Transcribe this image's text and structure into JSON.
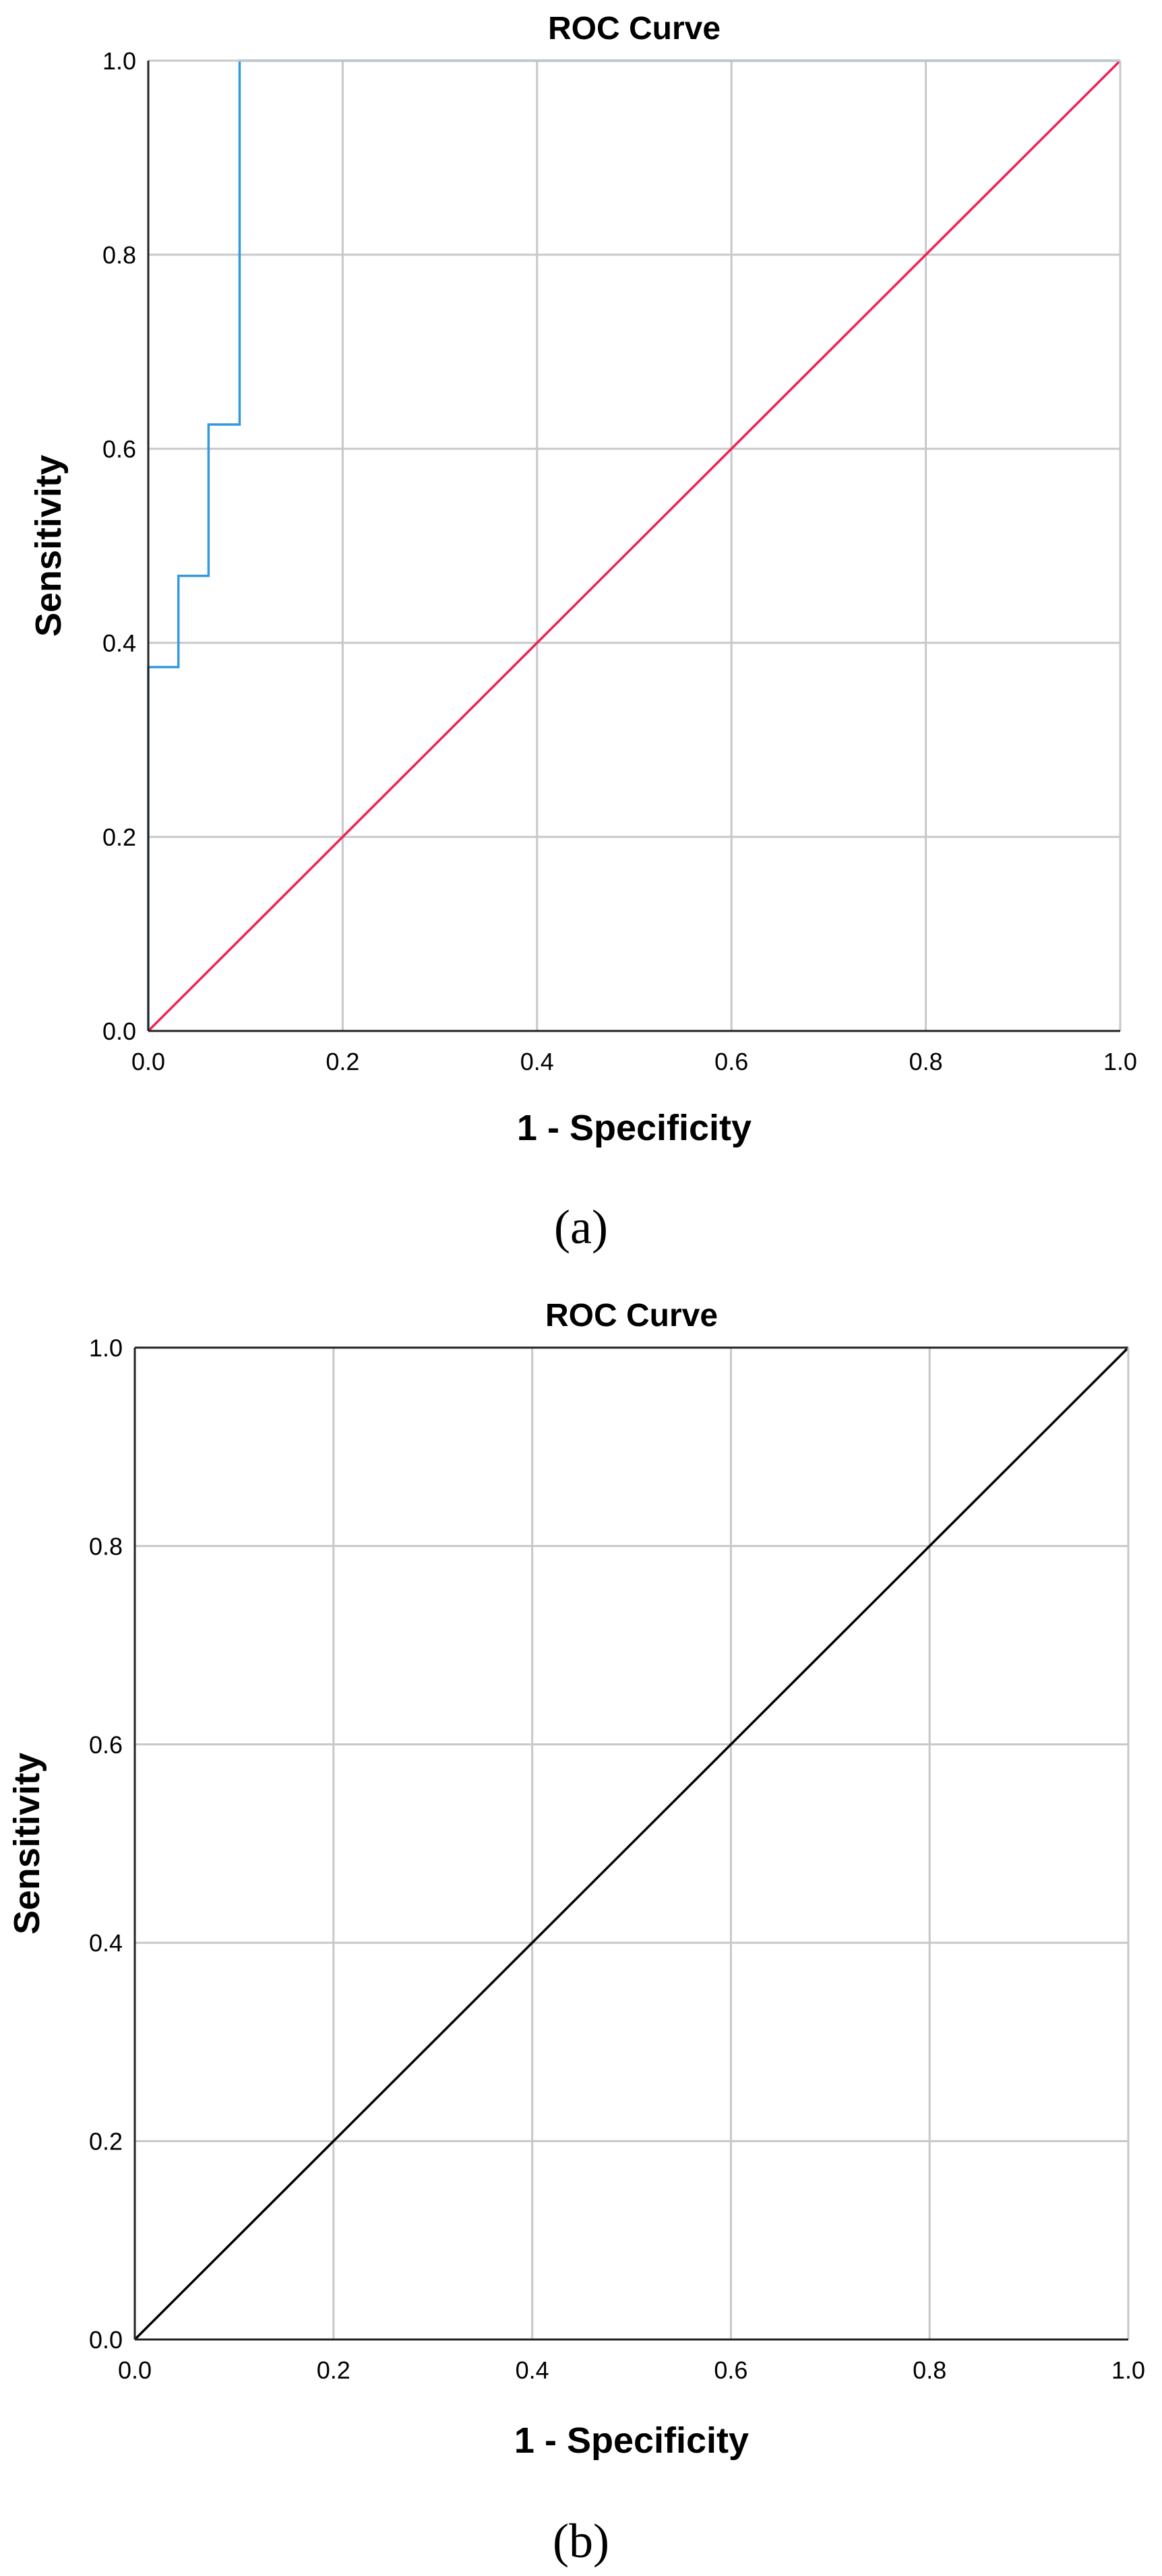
{
  "chart_data": [
    {
      "panel_label": "(a)",
      "type": "line",
      "title": "ROC Curve",
      "xlabel": "1 - Specificity",
      "ylabel": "Sensitivity",
      "xlim": [
        0,
        1
      ],
      "ylim": [
        0,
        1
      ],
      "x_ticks": [
        "0.0",
        "0.2",
        "0.4",
        "0.6",
        "0.8",
        "1.0"
      ],
      "y_ticks": [
        "0.0",
        "0.2",
        "0.4",
        "0.6",
        "0.8",
        "1.0"
      ],
      "grid": true,
      "series": [
        {
          "color": "#3399dd",
          "x": [
            0.0,
            0.0,
            0.031,
            0.031,
            0.062,
            0.062,
            0.094,
            0.094,
            1.0
          ],
          "y": [
            0.0,
            0.375,
            0.375,
            0.469,
            0.469,
            0.625,
            0.625,
            1.0,
            1.0
          ]
        },
        {
          "color": "#ee2255",
          "x": [
            0.0,
            1.0
          ],
          "y": [
            0.0,
            1.0
          ]
        }
      ]
    },
    {
      "panel_label": "(b)",
      "type": "line",
      "title": "ROC Curve",
      "xlabel": "1 - Specificity",
      "ylabel": "Sensitivity",
      "xlim": [
        0,
        1
      ],
      "ylim": [
        0,
        1
      ],
      "x_ticks": [
        "0.0",
        "0.2",
        "0.4",
        "0.6",
        "0.8",
        "1.0"
      ],
      "y_ticks": [
        "0.0",
        "0.2",
        "0.4",
        "0.6",
        "0.8",
        "1.0"
      ],
      "grid": true,
      "series": [
        {
          "color": "#000000",
          "x": [
            0.0,
            1.0
          ],
          "y": [
            0.0,
            1.0
          ]
        }
      ]
    }
  ]
}
